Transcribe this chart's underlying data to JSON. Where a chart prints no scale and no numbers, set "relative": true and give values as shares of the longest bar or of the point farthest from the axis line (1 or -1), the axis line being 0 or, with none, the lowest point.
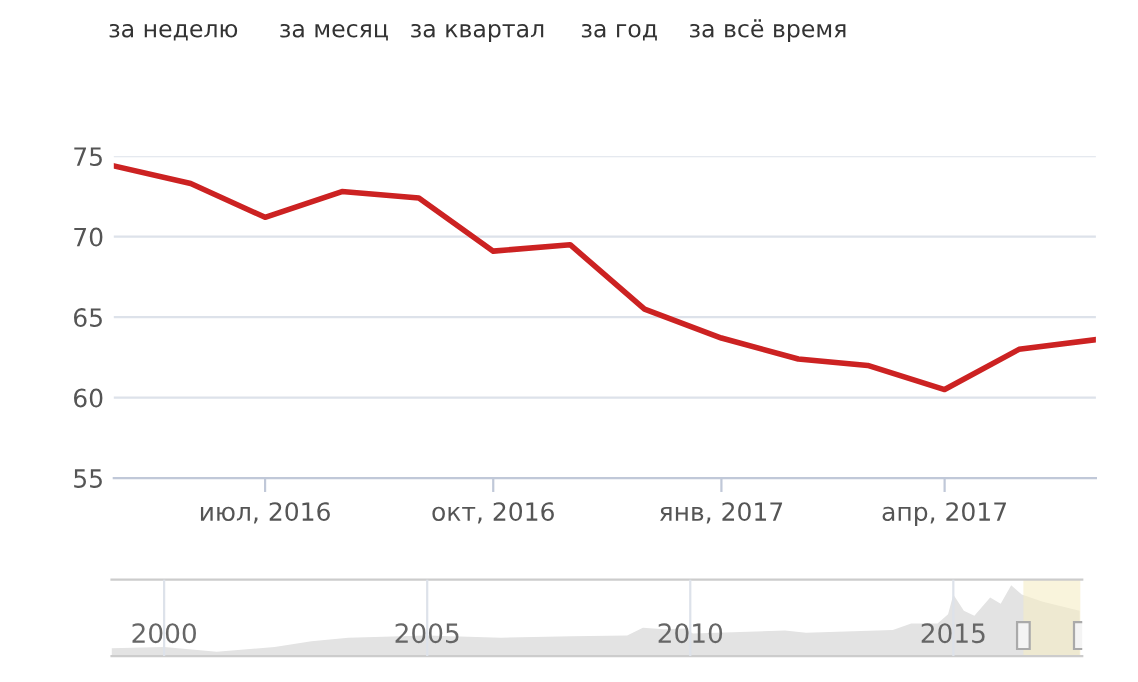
{
  "chart_data": [
    {
      "type": "line",
      "annotations": [
        "за неделю",
        "за месяц",
        "за квартал",
        "за год",
        "за всё время"
      ],
      "x": [
        "2016-05-01",
        "2016-06-01",
        "2016-07-01",
        "2016-08-01",
        "2016-09-01",
        "2016-10-01",
        "2016-11-01",
        "2016-12-01",
        "2017-01-01",
        "2017-02-01",
        "2017-03-01",
        "2017-04-01",
        "2017-05-01",
        "2017-06-01"
      ],
      "series": [
        {
          "color": "#cc2222",
          "values": [
            74.4,
            73.3,
            71.2,
            72.8,
            72.4,
            69.1,
            69.5,
            65.5,
            63.7,
            62.4,
            62.0,
            60.5,
            63.0,
            63.6
          ]
        }
      ],
      "xlim": [
        "2016-05-01",
        "2017-06-01"
      ],
      "xticks": [
        {
          "value": "2016-07-01",
          "label": "июл, 2016"
        },
        {
          "value": "2016-10-01",
          "label": "окт, 2016"
        },
        {
          "value": "2017-01-01",
          "label": "янв, 2017"
        },
        {
          "value": "2017-04-01",
          "label": "апр, 2017"
        }
      ],
      "ylim": [
        55,
        75
      ],
      "yticks": [
        55,
        60,
        65,
        70,
        75
      ],
      "grid": "y",
      "marker": "none",
      "line_style": "solid"
    },
    {
      "type": "area",
      "relative": true,
      "x": [
        1999.0,
        2000.0,
        2001.0,
        2002.1,
        2002.8,
        2003.5,
        2005.0,
        2006.4,
        2007.75,
        2008.8,
        2009.1,
        2009.5,
        2009.9,
        2010.05,
        2011.8,
        2012.2,
        2013.85,
        2014.2,
        2014.7,
        2014.9,
        2015.0,
        2015.2,
        2015.4,
        2015.7,
        2015.9,
        2016.1,
        2016.3,
        2016.7,
        2017.4
      ],
      "series": [
        {
          "color": "#e3e3e3",
          "values": [
            0.11,
            0.13,
            0.06,
            0.13,
            0.21,
            0.26,
            0.29,
            0.26,
            0.28,
            0.29,
            0.4,
            0.38,
            0.39,
            0.32,
            0.36,
            0.33,
            0.37,
            0.46,
            0.46,
            0.59,
            0.87,
            0.64,
            0.57,
            0.83,
            0.74,
            1.0,
            0.87,
            0.77,
            0.64
          ]
        }
      ],
      "xlim": [
        1999.0,
        2017.45
      ],
      "xticks": [
        2000,
        2005,
        2010,
        2015
      ],
      "grid": "x"
    }
  ]
}
